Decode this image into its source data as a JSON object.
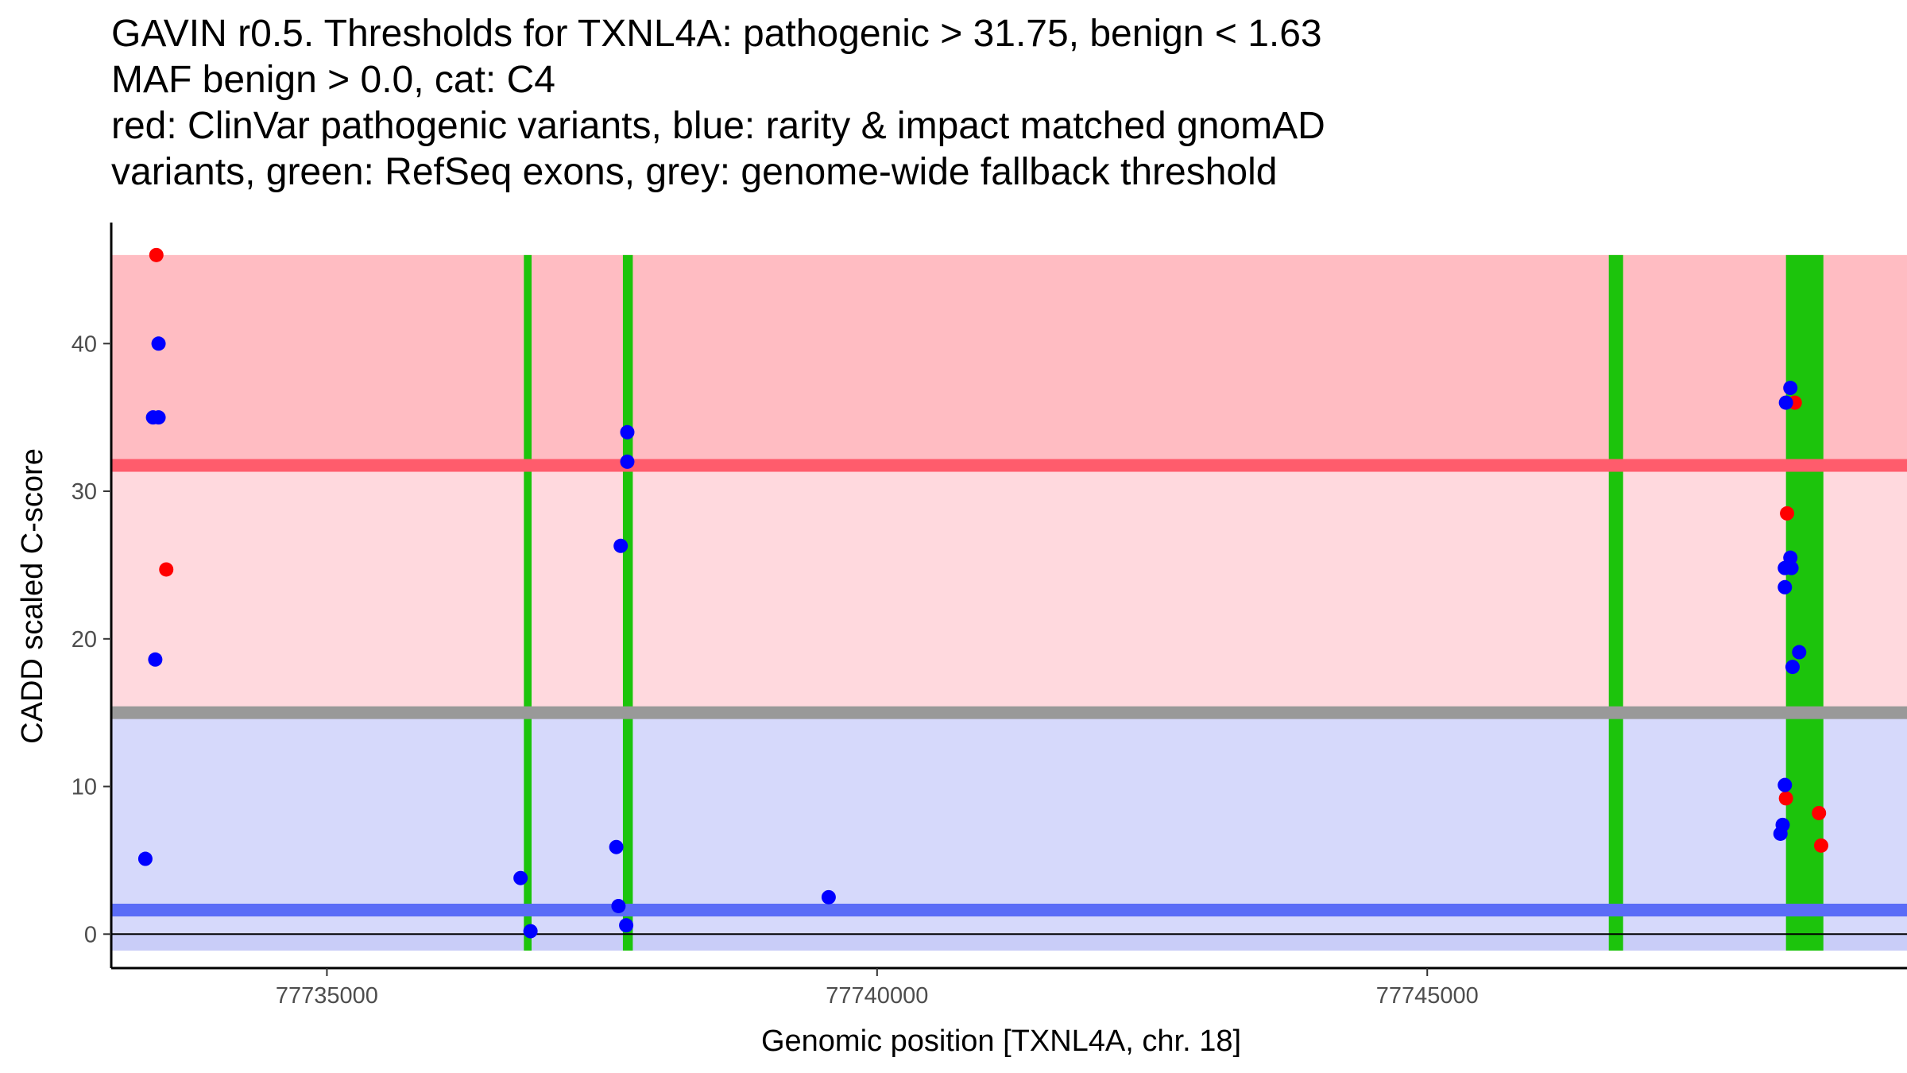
{
  "title_lines": [
    "GAVIN r0.5. Thresholds for TXNL4A: pathogenic > 31.75, benign < 1.63",
    "MAF benign > 0.0, cat: C4",
    "red: ClinVar pathogenic variants, blue: rarity & impact matched gnomAD",
    "variants, green: RefSeq exons, grey: genome-wide fallback threshold"
  ],
  "chart_data": {
    "type": "scatter",
    "xlabel": "Genomic position [TXNL4A, chr. 18]",
    "ylabel": "CADD scaled C-score",
    "xlim": [
      77733040,
      77749360
    ],
    "ylim": [
      -2.3,
      48.2
    ],
    "x_ticks": [
      77735000,
      77740000,
      77745000
    ],
    "x_tick_labels": [
      "77735000",
      "77740000",
      "77745000"
    ],
    "y_ticks": [
      0,
      10,
      20,
      30,
      40
    ],
    "y_tick_labels": [
      "0",
      "10",
      "20",
      "30",
      "40"
    ],
    "grid": false,
    "legend": "none",
    "colors": {
      "pathogenic_region": "#ffbcc2",
      "middle_region": "#ffd9de",
      "benign_region": "#d6d9fb",
      "below_zero_region": "#c9cdf8",
      "pathogenic_threshold": "#ff5c6c",
      "fallback_threshold": "#999999",
      "benign_threshold": "#5a6cf7",
      "exon": "#1cc40c",
      "pathogenic_point": "#ff0000",
      "gnomad_point": "#0000ff"
    },
    "regions": [
      {
        "name": "pathogenic",
        "ymin": 31.75,
        "ymax": 46
      },
      {
        "name": "intermediate",
        "ymin": 15,
        "ymax": 31.75
      },
      {
        "name": "benign",
        "ymin": 0,
        "ymax": 15
      }
    ],
    "thresholds": [
      {
        "name": "pathogenic",
        "value": 31.75
      },
      {
        "name": "fallback",
        "value": 15
      },
      {
        "name": "benign",
        "value": 1.63
      }
    ],
    "exons": [
      {
        "start": 77736790,
        "end": 77736860
      },
      {
        "start": 77737690,
        "end": 77737780
      },
      {
        "start": 77746650,
        "end": 77746780
      },
      {
        "start": 77748260,
        "end": 77748600
      }
    ],
    "series": [
      {
        "name": "ClinVar pathogenic",
        "points": [
          {
            "x": 77733450,
            "y": 46.0
          },
          {
            "x": 77733540,
            "y": 24.7
          },
          {
            "x": 77748340,
            "y": 36.0
          },
          {
            "x": 77748270,
            "y": 28.5
          },
          {
            "x": 77748260,
            "y": 9.2
          },
          {
            "x": 77748560,
            "y": 8.2
          },
          {
            "x": 77748580,
            "y": 6.0
          }
        ]
      },
      {
        "name": "gnomAD",
        "points": [
          {
            "x": 77733470,
            "y": 40.0
          },
          {
            "x": 77733420,
            "y": 35.0
          },
          {
            "x": 77733470,
            "y": 35.0
          },
          {
            "x": 77733440,
            "y": 18.6
          },
          {
            "x": 77733350,
            "y": 5.1
          },
          {
            "x": 77736760,
            "y": 3.8
          },
          {
            "x": 77736850,
            "y": 0.2
          },
          {
            "x": 77737630,
            "y": 5.9
          },
          {
            "x": 77737650,
            "y": 1.9
          },
          {
            "x": 77737720,
            "y": 0.6
          },
          {
            "x": 77737730,
            "y": 34.0
          },
          {
            "x": 77737730,
            "y": 32.0
          },
          {
            "x": 77737670,
            "y": 26.3
          },
          {
            "x": 77739560,
            "y": 2.5
          },
          {
            "x": 77748300,
            "y": 37.0
          },
          {
            "x": 77748260,
            "y": 36.0
          },
          {
            "x": 77748300,
            "y": 25.5
          },
          {
            "x": 77748250,
            "y": 24.8
          },
          {
            "x": 77748310,
            "y": 24.8
          },
          {
            "x": 77748250,
            "y": 23.5
          },
          {
            "x": 77748380,
            "y": 19.1
          },
          {
            "x": 77748320,
            "y": 18.1
          },
          {
            "x": 77748250,
            "y": 10.1
          },
          {
            "x": 77748230,
            "y": 7.4
          },
          {
            "x": 77748210,
            "y": 6.8
          }
        ]
      }
    ]
  }
}
